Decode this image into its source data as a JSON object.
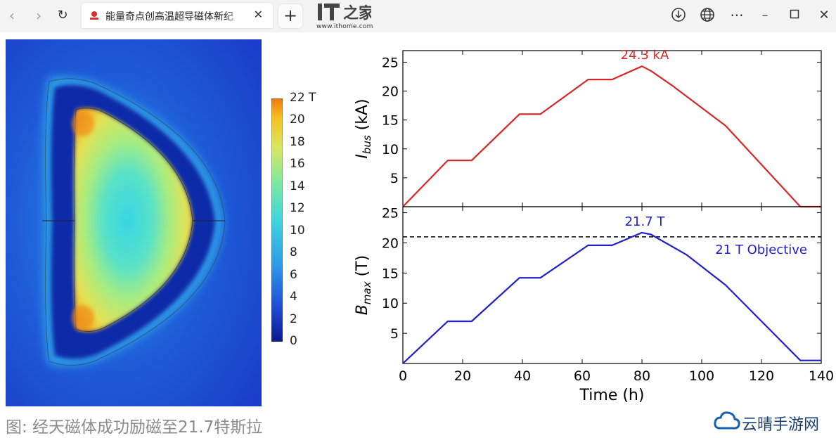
{
  "browser": {
    "tab_title": "能量奇点创高温超导磁体新纪",
    "tab_close": "✕",
    "new_tab": "+",
    "site_logo_text": "IT之家",
    "site_url": "www.ithome.com",
    "icons": [
      "back-icon",
      "forward-icon",
      "refresh-icon",
      "download-icon",
      "globe-icon",
      "more-icon",
      "minimize-icon",
      "maximize-icon",
      "close-window-icon"
    ]
  },
  "colorbar": {
    "ticks": [
      "22 T",
      "20",
      "18",
      "16",
      "14",
      "12",
      "10",
      "8",
      "6",
      "4",
      "2",
      "0"
    ],
    "range": [
      0,
      22
    ],
    "unit": "T",
    "colormap": [
      "#0a1a8c",
      "#1f4fd6",
      "#2f9be8",
      "#3fd5e0",
      "#7ce8a0",
      "#d8e860",
      "#f8c020",
      "#f07810"
    ]
  },
  "chart_data": [
    {
      "type": "line",
      "ylabel": "I",
      "ylabel_sub": "bus",
      "ylabel_unit": "(kA)",
      "ylim": [
        0,
        27
      ],
      "yticks": [
        5,
        10,
        15,
        20,
        25
      ],
      "xlim": [
        0,
        140
      ],
      "color": "#d62728",
      "series": [
        {
          "x": [
            0,
            15,
            23,
            39,
            46,
            62,
            70,
            80,
            83,
            90,
            108,
            133,
            140
          ],
          "y": [
            0,
            8,
            8,
            16,
            16,
            22,
            22,
            24.3,
            23.5,
            21,
            14,
            0,
            0
          ]
        }
      ],
      "annotations": [
        {
          "text": "24.3 kA",
          "x": 80,
          "y": 24.3
        }
      ]
    },
    {
      "type": "line",
      "ylabel": "B",
      "ylabel_sub": "max",
      "ylabel_unit": "(T)",
      "ylim": [
        0,
        26
      ],
      "yticks": [
        5,
        10,
        15,
        20,
        25
      ],
      "xlim": [
        0,
        140
      ],
      "xticks": [
        0,
        20,
        40,
        60,
        80,
        100,
        120,
        140
      ],
      "xlabel": "Time (h)",
      "color": "#1f1fc8",
      "series": [
        {
          "x": [
            0,
            15,
            23,
            39,
            46,
            62,
            70,
            80,
            83,
            95,
            108,
            133,
            140
          ],
          "y": [
            0,
            7,
            7,
            14.2,
            14.2,
            19.6,
            19.6,
            21.7,
            21.4,
            18,
            13,
            0.5,
            0.5
          ]
        }
      ],
      "reference_line": {
        "y": 21,
        "style": "dashed",
        "label": "21 T Objective"
      },
      "annotations": [
        {
          "text": "21.7 T",
          "x": 80,
          "y": 21.7
        }
      ]
    }
  ],
  "caption": "图: 经天磁体成功励磁至21.7特斯拉",
  "watermark": "云晴手游网"
}
